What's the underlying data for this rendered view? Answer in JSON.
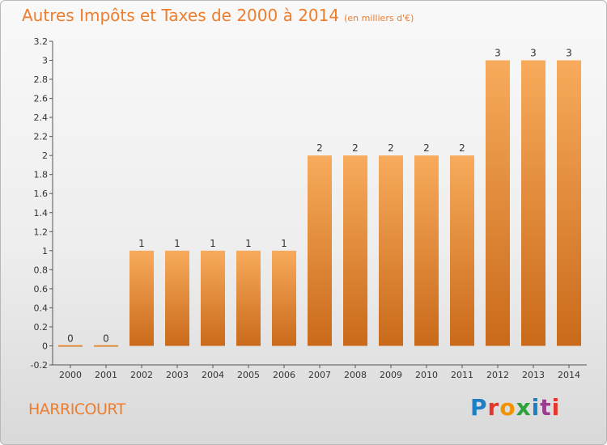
{
  "title": "Autres Impôts et Taxes de 2000 à 2014",
  "unit_note": "(en milliers d'€)",
  "commune": "HARRICOURT",
  "logo": {
    "text": "Proxiti",
    "colors": [
      "#1e7fc4",
      "#e8352b",
      "#f39200",
      "#2aa33a",
      "#1e7fc4",
      "#9a3d8f",
      "#e8352b"
    ]
  },
  "colors": {
    "bar_light": "#f8ab5c",
    "bar_dark": "#c96a1a",
    "title": "#ee7d2e",
    "axis": "#555555"
  },
  "chart_data": {
    "type": "bar",
    "categories": [
      "2000",
      "2001",
      "2002",
      "2003",
      "2004",
      "2005",
      "2006",
      "2007",
      "2008",
      "2009",
      "2010",
      "2011",
      "2012",
      "2013",
      "2014"
    ],
    "values": [
      0,
      0,
      1,
      1,
      1,
      1,
      1,
      2,
      2,
      2,
      2,
      2,
      3,
      3,
      3
    ],
    "data_labels": [
      "0",
      "0",
      "1",
      "1",
      "1",
      "1",
      "1",
      "2",
      "2",
      "2",
      "2",
      "2",
      "3",
      "3",
      "3"
    ],
    "ylim": [
      -0.2,
      3.2
    ],
    "yticks": [
      -0.2,
      0,
      0.2,
      0.4,
      0.6,
      0.8,
      1,
      1.2,
      1.4,
      1.6,
      1.8,
      2,
      2.2,
      2.4,
      2.6,
      2.8,
      3,
      3.2
    ],
    "ytick_labels": [
      "-0.2",
      "0",
      "0.2",
      "0.4",
      "0.6",
      "0.8",
      "1",
      "1.2",
      "1.4",
      "1.6",
      "1.8",
      "2",
      "2.2",
      "2.4",
      "2.6",
      "2.8",
      "3",
      "3.2"
    ],
    "grid": false,
    "legend": "none"
  }
}
